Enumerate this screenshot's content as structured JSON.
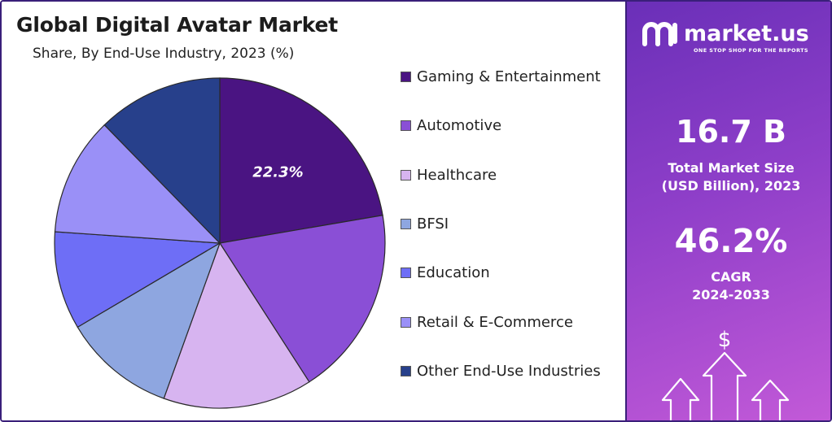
{
  "header": {
    "title": "Global Digital Avatar Market",
    "subtitle": "Share, By End-Use Industry, 2023 (%)"
  },
  "chart_data": {
    "type": "pie",
    "title": "Global Digital Avatar Market",
    "subtitle": "Share, By End-Use Industry, 2023 (%)",
    "legend_placement": "right",
    "slices": [
      {
        "label": "Gaming & Entertainment",
        "value": 22.3,
        "color": "#4a1482",
        "data_label": "22.3%"
      },
      {
        "label": "Automotive",
        "value": 18.6,
        "color": "#8a4fd6",
        "data_label": ""
      },
      {
        "label": "Healthcare",
        "value": 14.6,
        "color": "#d7b4f0",
        "data_label": ""
      },
      {
        "label": "BFSI",
        "value": 11.0,
        "color": "#8ea6e0",
        "data_label": ""
      },
      {
        "label": "Education",
        "value": 9.6,
        "color": "#6e6ef6",
        "data_label": ""
      },
      {
        "label": "Retail & E-Commerce",
        "value": 11.6,
        "color": "#9a90f7",
        "data_label": ""
      },
      {
        "label": "Other End-Use Industries",
        "value": 12.3,
        "color": "#27408b",
        "data_label": ""
      }
    ]
  },
  "brand": {
    "name": "market.us",
    "tagline": "ONE STOP SHOP FOR THE REPORTS"
  },
  "stats": {
    "market_size_value": "16.7 B",
    "market_size_label_line1": "Total Market Size",
    "market_size_label_line2": "(USD Billion), 2023",
    "cagr_value": "46.2%",
    "cagr_label_line1": "CAGR",
    "cagr_label_line2": "2024-2033"
  },
  "icons": {
    "dollar_symbol": "$"
  }
}
